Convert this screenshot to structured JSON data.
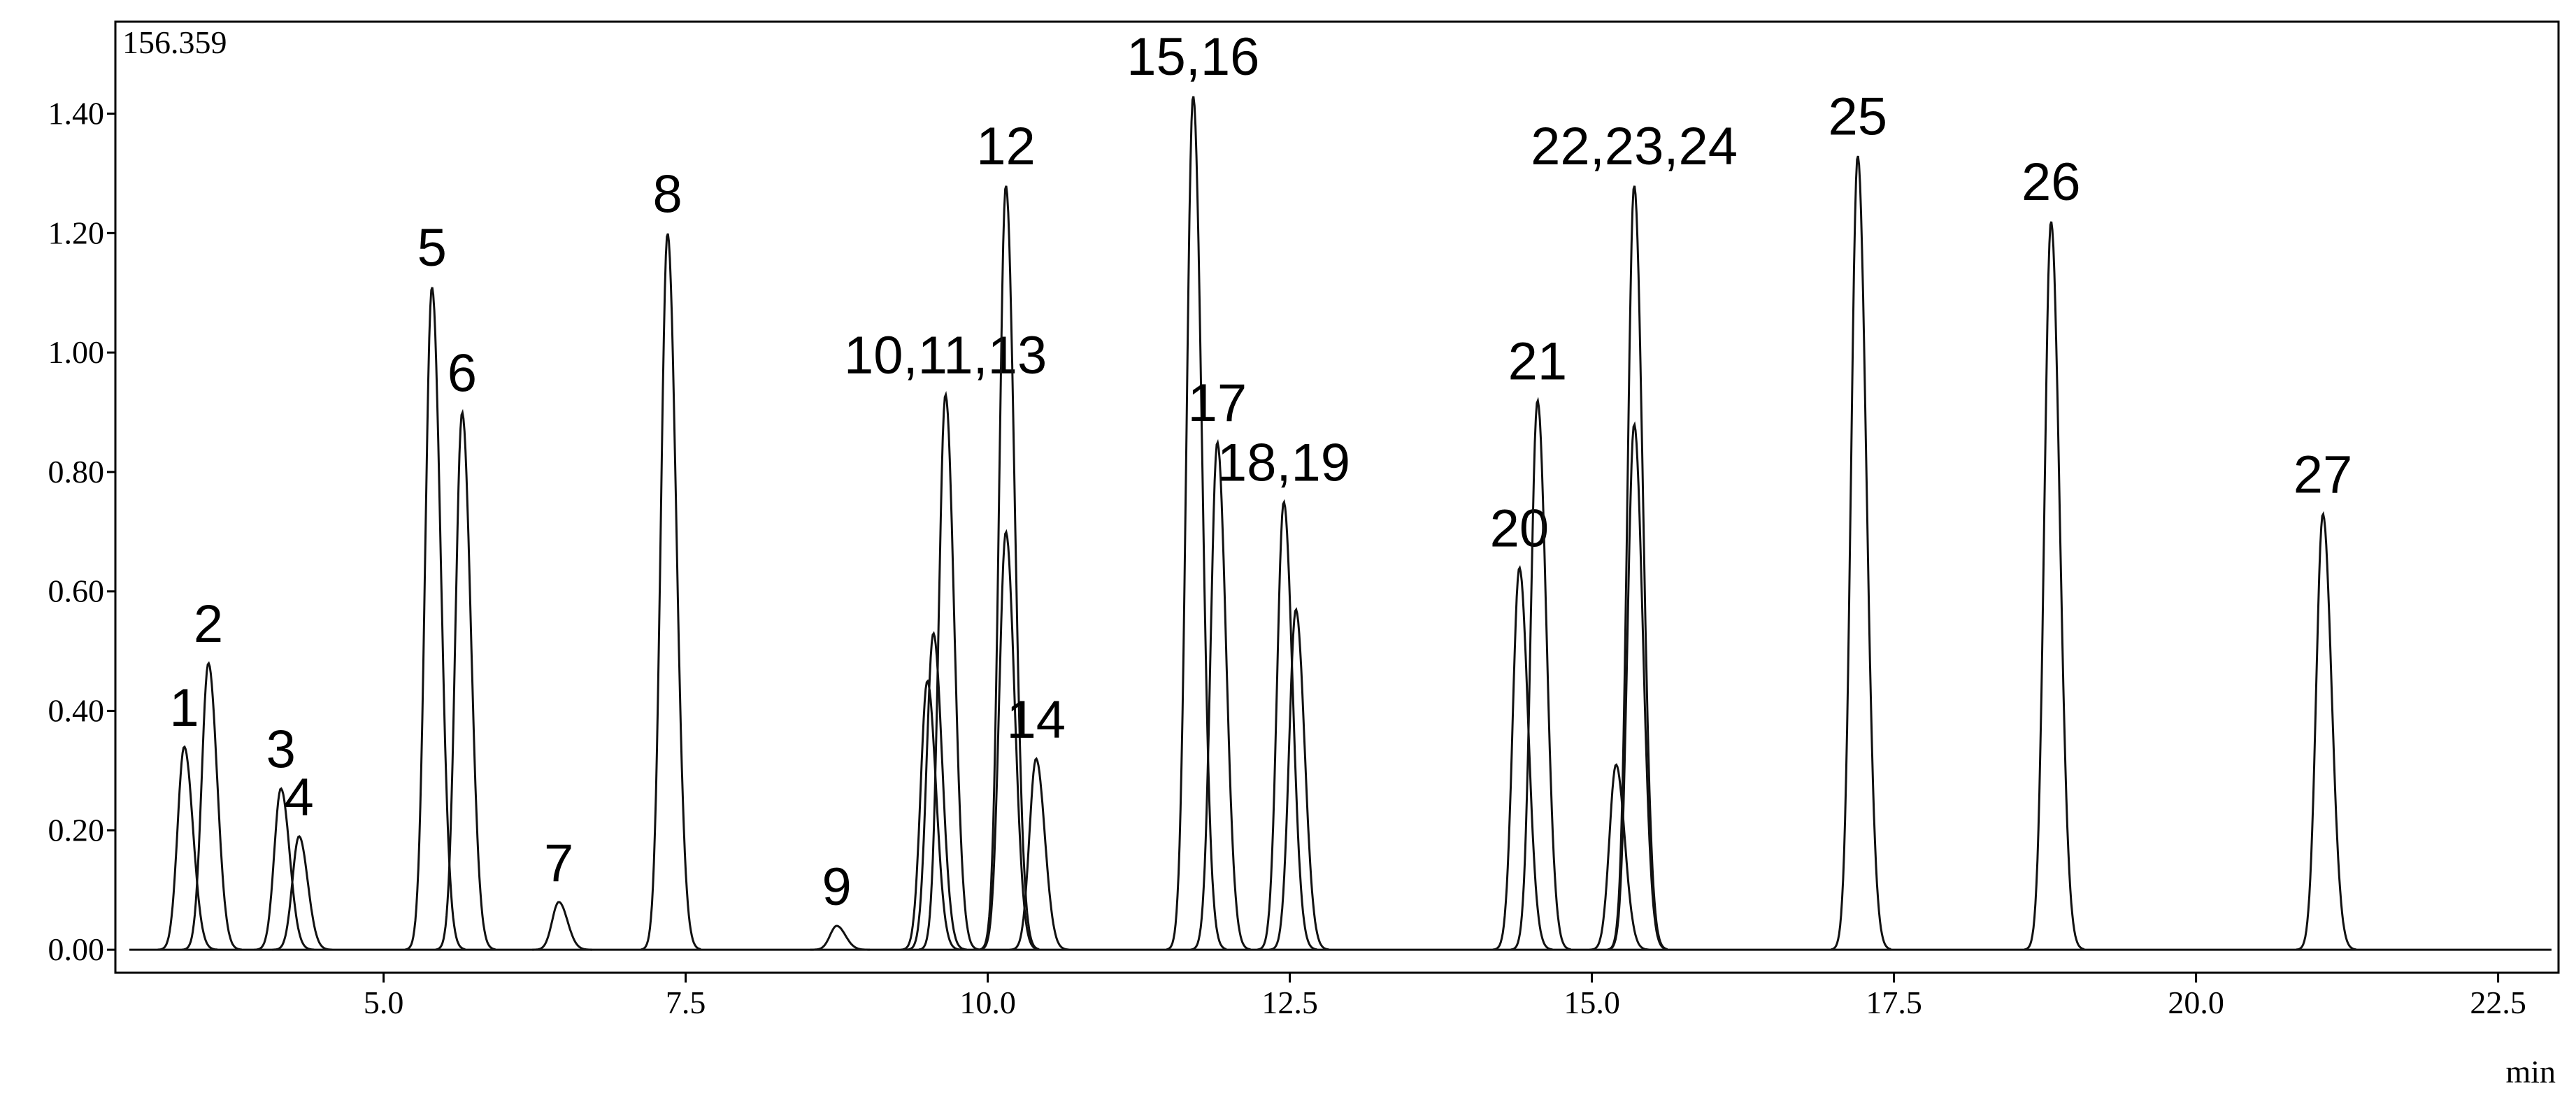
{
  "chart_data": {
    "type": "chromatogram",
    "header_value": "156.359",
    "x_label": "min",
    "xlim": [
      2.78,
      23.0
    ],
    "ylim": [
      -0.0385,
      1.554
    ],
    "xticks": [
      {
        "value": 5,
        "label": "5.0"
      },
      {
        "value": 7.5,
        "label": "7.5"
      },
      {
        "value": 10,
        "label": "10.0"
      },
      {
        "value": 12.5,
        "label": "12.5"
      },
      {
        "value": 15,
        "label": "15.0"
      },
      {
        "value": 17.5,
        "label": "17.5"
      },
      {
        "value": 20,
        "label": "20.0"
      },
      {
        "value": 22.5,
        "label": "22.5"
      }
    ],
    "yticks": [
      {
        "value": 0,
        "label": "0.00"
      },
      {
        "value": 0.2,
        "label": "0.20"
      },
      {
        "value": 0.4,
        "label": "0.40"
      },
      {
        "value": 0.6,
        "label": "0.60"
      },
      {
        "value": 0.8,
        "label": "0.80"
      },
      {
        "value": 1.0,
        "label": "1.00"
      },
      {
        "value": 1.2,
        "label": "1.20"
      },
      {
        "value": 1.4,
        "label": "1.40"
      }
    ],
    "color": "#111111",
    "peaks": [
      {
        "label": "1",
        "x": 3.35,
        "y": 0.34
      },
      {
        "label": "2",
        "x": 3.55,
        "y": 0.48
      },
      {
        "label": "3",
        "x": 4.15,
        "y": 0.27
      },
      {
        "label": "4",
        "x": 4.3,
        "y": 0.19
      },
      {
        "label": "5",
        "x": 5.4,
        "y": 1.11
      },
      {
        "label": "6",
        "x": 5.65,
        "y": 0.9
      },
      {
        "label": "7",
        "x": 6.45,
        "y": 0.08
      },
      {
        "label": "8",
        "x": 7.35,
        "y": 1.2
      },
      {
        "label": "9",
        "x": 8.75,
        "y": 0.04
      },
      {
        "label": "10,11,13",
        "x": 9.65,
        "y": 0.93
      },
      {
        "label": "12",
        "x": 10.15,
        "y": 1.28
      },
      {
        "label": "14",
        "x": 10.4,
        "y": 0.32
      },
      {
        "label": "15,16",
        "x": 11.7,
        "y": 1.43
      },
      {
        "label": "17",
        "x": 11.9,
        "y": 0.85
      },
      {
        "label": "18,19",
        "x": 12.45,
        "y": 0.75
      },
      {
        "label": "20",
        "x": 14.4,
        "y": 0.64
      },
      {
        "label": "21",
        "x": 14.55,
        "y": 0.92
      },
      {
        "label": "22,23,24",
        "x": 15.35,
        "y": 1.28
      },
      {
        "label": "25",
        "x": 17.2,
        "y": 1.33
      },
      {
        "label": "26",
        "x": 18.8,
        "y": 1.22
      },
      {
        "label": "27",
        "x": 21.05,
        "y": 0.73
      }
    ],
    "minor_peaks": [
      {
        "x": 9.5,
        "y": 0.45
      },
      {
        "x": 9.55,
        "y": 0.53
      },
      {
        "x": 10.15,
        "y": 0.7
      },
      {
        "x": 12.55,
        "y": 0.57
      },
      {
        "x": 15.2,
        "y": 0.31
      },
      {
        "x": 15.35,
        "y": 0.88
      }
    ]
  }
}
